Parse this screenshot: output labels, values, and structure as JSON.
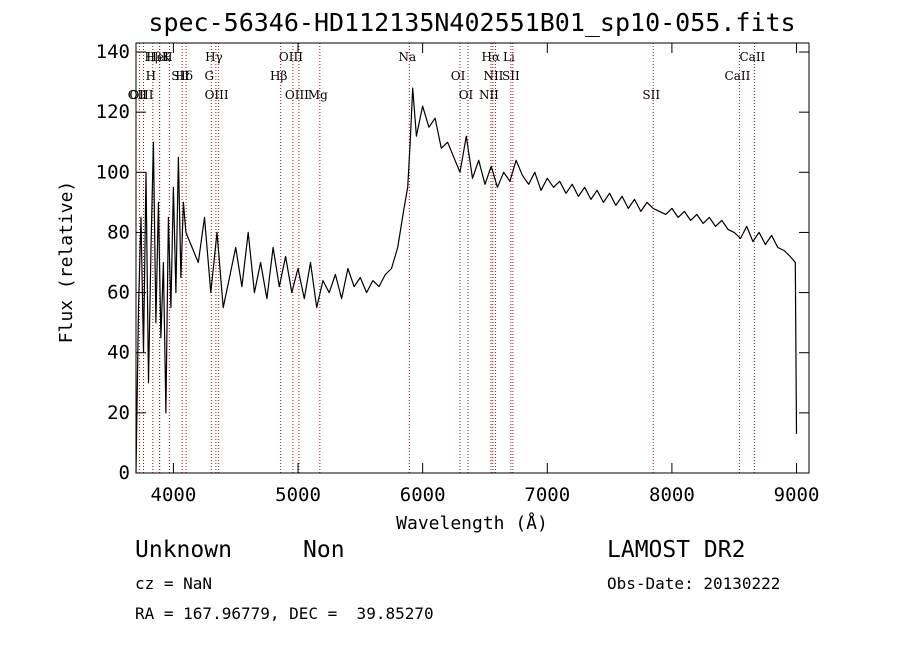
{
  "chart_data": {
    "type": "line",
    "title": "spec-56346-HD112135N402551B01_sp10-055.fits",
    "xlabel": "Wavelength (Å)",
    "ylabel": "Flux (relative)",
    "xlim": [
      3700,
      9100
    ],
    "ylim": [
      0,
      143
    ],
    "x_ticks": [
      4000,
      5000,
      6000,
      7000,
      8000,
      9000
    ],
    "x_tick_labels": [
      "4000",
      "5000",
      "6000",
      "7000",
      "8000",
      "9000"
    ],
    "y_ticks": [
      0,
      20,
      40,
      60,
      80,
      100,
      120,
      140
    ],
    "y_tick_labels": [
      "0",
      "20",
      "40",
      "60",
      "80",
      "100",
      "120",
      "140"
    ],
    "series": [
      {
        "color": "#000000",
        "x": [
          3700,
          3720,
          3740,
          3760,
          3780,
          3800,
          3820,
          3840,
          3860,
          3880,
          3900,
          3920,
          3940,
          3960,
          3980,
          4000,
          4020,
          4040,
          4060,
          4080,
          4100,
          4150,
          4200,
          4250,
          4300,
          4350,
          4400,
          4450,
          4500,
          4550,
          4600,
          4650,
          4700,
          4750,
          4800,
          4850,
          4900,
          4950,
          5000,
          5050,
          5100,
          5150,
          5200,
          5250,
          5300,
          5350,
          5400,
          5450,
          5500,
          5550,
          5600,
          5650,
          5700,
          5750,
          5800,
          5850,
          5880,
          5900,
          5920,
          5950,
          6000,
          6050,
          6100,
          6150,
          6200,
          6250,
          6300,
          6350,
          6400,
          6450,
          6500,
          6550,
          6600,
          6650,
          6700,
          6750,
          6800,
          6850,
          6900,
          6950,
          7000,
          7050,
          7100,
          7150,
          7200,
          7250,
          7300,
          7350,
          7400,
          7450,
          7500,
          7550,
          7600,
          7650,
          7700,
          7750,
          7800,
          7850,
          7900,
          7950,
          8000,
          8050,
          8100,
          8150,
          8200,
          8250,
          8300,
          8350,
          8400,
          8450,
          8500,
          8550,
          8600,
          8650,
          8700,
          8750,
          8800,
          8850,
          8900,
          8950,
          8990,
          9000
        ],
        "y": [
          0,
          55,
          85,
          40,
          100,
          30,
          75,
          110,
          50,
          90,
          45,
          70,
          20,
          85,
          55,
          95,
          60,
          105,
          65,
          90,
          80,
          75,
          70,
          85,
          60,
          80,
          55,
          65,
          75,
          62,
          80,
          60,
          70,
          58,
          75,
          62,
          72,
          60,
          68,
          58,
          70,
          55,
          64,
          60,
          66,
          58,
          68,
          62,
          65,
          60,
          64,
          62,
          66,
          68,
          75,
          88,
          95,
          110,
          128,
          112,
          122,
          115,
          118,
          108,
          110,
          105,
          100,
          112,
          98,
          104,
          96,
          102,
          95,
          100,
          97,
          104,
          99,
          96,
          100,
          94,
          98,
          95,
          97,
          93,
          96,
          92,
          95,
          91,
          94,
          90,
          93,
          89,
          92,
          88,
          91,
          87,
          90,
          88,
          87,
          86,
          88,
          85,
          87,
          84,
          86,
          83,
          85,
          82,
          84,
          81,
          80,
          78,
          82,
          77,
          80,
          76,
          79,
          75,
          74,
          72,
          70,
          13
        ]
      }
    ],
    "spectral_lines": [
      {
        "label": "HβK",
        "x": 3890
      },
      {
        "label": "Hδ",
        "x": 4102
      },
      {
        "label": "OII",
        "x": 3727
      },
      {
        "label": "HeI",
        "x": 3889
      },
      {
        "label": "SII",
        "x": 4070
      },
      {
        "label": "OIII",
        "x": 3760
      },
      {
        "label": "H",
        "x": 3968
      },
      {
        "label": "H",
        "x": 3835
      },
      {
        "label": "OIII",
        "x": 4363
      },
      {
        "label": "Hγ",
        "x": 4341
      },
      {
        "label": "G",
        "x": 4304
      },
      {
        "label": "OIII",
        "x": 5007
      },
      {
        "label": "OIII",
        "x": 4959
      },
      {
        "label": "Hβ",
        "x": 4861
      },
      {
        "label": "Mg",
        "x": 5175
      },
      {
        "label": "Na",
        "x": 5893
      },
      {
        "label": "OI",
        "x": 6300
      },
      {
        "label": "OI",
        "x": 6364
      },
      {
        "label": "Hα",
        "x": 6563
      },
      {
        "label": "NII",
        "x": 6584
      },
      {
        "label": "NII",
        "x": 6548
      },
      {
        "label": "Li",
        "x": 6708
      },
      {
        "label": "SII",
        "x": 6724
      },
      {
        "label": "SII",
        "x": 7850
      },
      {
        "label": "CaII",
        "x": 8662
      },
      {
        "label": "CaII",
        "x": 8542
      }
    ]
  },
  "info": {
    "class": "Unknown",
    "subclass": "Non",
    "survey": "LAMOST DR2",
    "cz": "cz = NaN",
    "obs_date": "Obs-Date: 20130222",
    "radec": "RA = 167.96779, DEC =  39.85270"
  }
}
